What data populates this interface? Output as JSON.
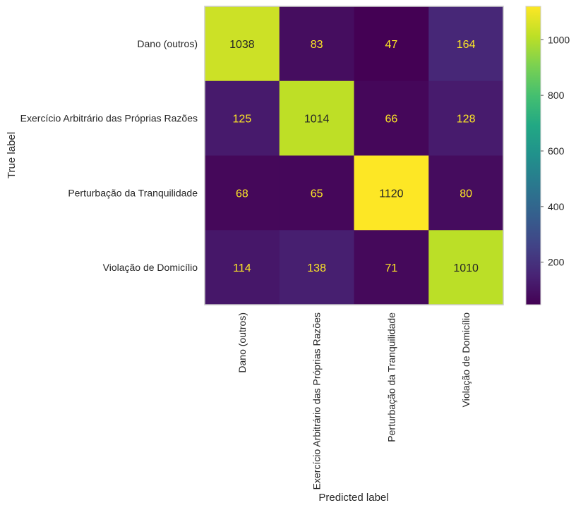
{
  "chart_data": {
    "type": "heatmap",
    "title": "",
    "xlabel": "Predicted label",
    "ylabel": "True label",
    "x_categories": [
      "Dano (outros)",
      "Exercício Arbitrário das Próprias Razões",
      "Perturbação da Tranquilidade",
      "Violação de Domicílio"
    ],
    "y_categories": [
      "Dano (outros)",
      "Exercício Arbitrário das Próprias Razões",
      "Perturbação da Tranquilidade",
      "Violação de Domicílio"
    ],
    "matrix": [
      [
        1038,
        83,
        47,
        164
      ],
      [
        125,
        1014,
        66,
        128
      ],
      [
        68,
        65,
        1120,
        80
      ],
      [
        114,
        138,
        71,
        1010
      ]
    ],
    "colormap": "viridis",
    "colorbar": {
      "min": 47,
      "max": 1120,
      "ticks": [
        200,
        400,
        600,
        800,
        1000
      ]
    },
    "grid": false
  }
}
